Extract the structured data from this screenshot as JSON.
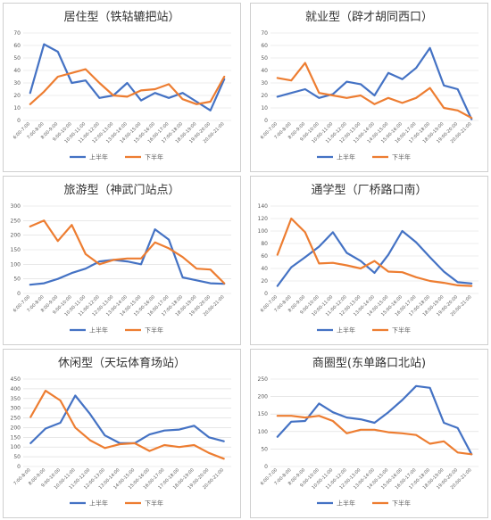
{
  "colors": {
    "series_am": "#4472C4",
    "series_pm": "#ED7D31",
    "grid": "#D9D9D9",
    "border": "#CFCFCF"
  },
  "chart_data": [
    {
      "type": "line",
      "title": "居住型（铁轱辘把站）",
      "categories": [
        "6:00-7:00",
        "7:00-8:00",
        "8:00-9:00",
        "9:00-10:00",
        "10:00-11:00",
        "11:00-12:00",
        "12:00-13:00",
        "13:00-14:00",
        "14:00-15:00",
        "15:00-16:00",
        "16:00-17:00",
        "17:00-18:00",
        "18:00-19:00",
        "19:00-20:00",
        "20:00-21:00"
      ],
      "ylim": [
        0,
        70
      ],
      "yticks": [
        0,
        10,
        20,
        30,
        40,
        50,
        60,
        70
      ],
      "series": [
        {
          "name": "上半年",
          "values": [
            22,
            61,
            55,
            30,
            32,
            18,
            20,
            30,
            16,
            22,
            18,
            22,
            15,
            8,
            33
          ]
        },
        {
          "name": "下半年",
          "values": [
            13,
            23,
            35,
            38,
            41,
            30,
            20,
            19,
            24,
            25,
            29,
            17,
            13,
            15,
            35
          ]
        }
      ]
    },
    {
      "type": "line",
      "title": "就业型（辟才胡同西口）",
      "categories": [
        "6:00-7:00",
        "7:00-8:00",
        "8:00-9:00",
        "9:00-10:00",
        "10:00-11:00",
        "11:00-12:00",
        "12:00-13:00",
        "13:00-14:00",
        "14:00-15:00",
        "15:00-16:00",
        "16:00-17:00",
        "17:00-18:00",
        "18:00-19:00",
        "19:00-20:00",
        "20:00-21:00"
      ],
      "ylim": [
        0,
        70
      ],
      "yticks": [
        0,
        10,
        20,
        30,
        40,
        50,
        60,
        70
      ],
      "series": [
        {
          "name": "上半年",
          "values": [
            19,
            22,
            25,
            18,
            21,
            31,
            29,
            20,
            38,
            33,
            42,
            58,
            28,
            25,
            1
          ]
        },
        {
          "name": "下半年",
          "values": [
            34,
            32,
            46,
            22,
            20,
            18,
            20,
            13,
            18,
            14,
            18,
            26,
            10,
            8,
            2
          ]
        }
      ]
    },
    {
      "type": "line",
      "title": "旅游型（神武门站点）",
      "categories": [
        "6:00-7:00",
        "7:00-8:00",
        "8:00-9:00",
        "9:00-10:00",
        "10:00-11:00",
        "11:00-12:00",
        "12:00-13:00",
        "13:00-14:00",
        "14:00-15:00",
        "15:00-16:00",
        "16:00-17:00",
        "17:00-18:00",
        "18:00-19:00",
        "19:00-20:00",
        "20:00-21:00"
      ],
      "ylim": [
        0,
        300
      ],
      "yticks": [
        0,
        50,
        100,
        150,
        200,
        250,
        300
      ],
      "series": [
        {
          "name": "上半年",
          "values": [
            30,
            35,
            50,
            70,
            85,
            110,
            115,
            110,
            100,
            220,
            185,
            55,
            45,
            35,
            33
          ]
        },
        {
          "name": "下半年",
          "values": [
            230,
            250,
            180,
            235,
            135,
            100,
            115,
            120,
            120,
            175,
            155,
            125,
            85,
            82,
            35
          ]
        }
      ]
    },
    {
      "type": "line",
      "title": "通学型（厂桥路口南）",
      "categories": [
        "6:00-7:00",
        "7:00-8:00",
        "8:00-9:00",
        "9:00-10:00",
        "10:00-11:00",
        "11:00-12:00",
        "12:00-13:00",
        "13:00-14:00",
        "14:00-15:00",
        "15:00-16:00",
        "16:00-17:00",
        "17:00-18:00",
        "18:00-19:00",
        "19:00-20:00",
        "20:00-21:00"
      ],
      "ylim": [
        0,
        140
      ],
      "yticks": [
        0,
        20,
        40,
        60,
        80,
        100,
        120,
        140
      ],
      "series": [
        {
          "name": "上半年",
          "values": [
            12,
            42,
            58,
            75,
            98,
            65,
            52,
            33,
            62,
            100,
            82,
            58,
            35,
            18,
            16
          ]
        },
        {
          "name": "下半年",
          "values": [
            62,
            120,
            98,
            48,
            49,
            45,
            40,
            52,
            35,
            34,
            26,
            20,
            17,
            13,
            12
          ]
        }
      ]
    },
    {
      "type": "line",
      "title": "休闲型（天坛体育场站）",
      "categories": [
        "7:00-8:00",
        "8:00-9:00",
        "9:00-10:00",
        "10:00-11:00",
        "11:00-12:00",
        "12:00-13:00",
        "13:00-14:00",
        "14:00-15:00",
        "15:00-16:00",
        "16:00-17:00",
        "17:00-18:00",
        "18:00-19:00",
        "19:00-20:00",
        "20:00-21:00"
      ],
      "ylim": [
        0,
        450
      ],
      "yticks": [
        0,
        50,
        100,
        150,
        200,
        250,
        300,
        350,
        400,
        450
      ],
      "series": [
        {
          "name": "上半年",
          "values": [
            120,
            195,
            225,
            365,
            270,
            160,
            120,
            120,
            165,
            185,
            190,
            210,
            150,
            130
          ]
        },
        {
          "name": "下半年",
          "values": [
            255,
            390,
            340,
            200,
            135,
            95,
            115,
            120,
            80,
            110,
            100,
            110,
            70,
            40
          ]
        }
      ]
    },
    {
      "type": "line",
      "title": "商圈型(东单路口北站)",
      "categories": [
        "6:00-7:00",
        "7:00-8:00",
        "8:00-9:00",
        "9:00-10:00",
        "10:00-11:00",
        "11:00-12:00",
        "12:00-13:00",
        "13:00-14:00",
        "14:00-15:00",
        "15:00-16:00",
        "16:00-17:00",
        "17:00-18:00",
        "18:00-19:00",
        "19:00-20:00",
        "20:00-21:00"
      ],
      "ylim": [
        0,
        250
      ],
      "yticks": [
        0,
        50,
        100,
        150,
        200,
        250
      ],
      "series": [
        {
          "name": "上半年",
          "values": [
            85,
            128,
            130,
            180,
            155,
            140,
            135,
            125,
            155,
            190,
            230,
            225,
            125,
            110,
            35
          ]
        },
        {
          "name": "下半年",
          "values": [
            145,
            145,
            140,
            145,
            130,
            95,
            105,
            105,
            98,
            95,
            90,
            65,
            72,
            40,
            35
          ]
        }
      ]
    }
  ]
}
